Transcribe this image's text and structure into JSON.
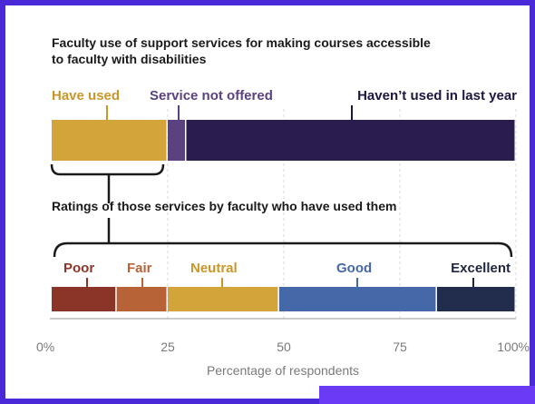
{
  "chart_data": [
    {
      "type": "bar",
      "orientation": "horizontal-stacked",
      "title": "Faculty use of support services for making courses accessible to faculty with disabilities",
      "title_lines": [
        "Faculty use of support services for making courses accessible",
        "to faculty with disabilities"
      ],
      "categories": [
        "Have used",
        "Service not offered",
        "Haven’t used in last year"
      ],
      "values": [
        25,
        4,
        71
      ],
      "colors": [
        "#d2a43a",
        "#5a4280",
        "#2a1d4e"
      ],
      "label_colors": [
        "#c9962a",
        "#5a4280",
        "#1f1640"
      ]
    },
    {
      "type": "bar",
      "orientation": "horizontal-stacked",
      "title": "Ratings of those services by faculty who have used them",
      "categories": [
        "Poor",
        "Fair",
        "Neutral",
        "Good",
        "Excellent"
      ],
      "values": [
        14,
        11,
        24,
        34,
        17
      ],
      "colors": [
        "#8a3527",
        "#b86237",
        "#d2a43a",
        "#4569a8",
        "#222c4d"
      ],
      "label_colors": [
        "#8a3527",
        "#b86237",
        "#c9962a",
        "#4569a8",
        "#1f2640"
      ]
    }
  ],
  "x_axis": {
    "ticks": [
      "0%",
      "25",
      "50",
      "75",
      "100%"
    ],
    "tick_values": [
      0,
      25,
      50,
      75,
      100
    ],
    "xlabel": "Percentage of respondents",
    "xlim": [
      0,
      100
    ],
    "grid": true
  }
}
